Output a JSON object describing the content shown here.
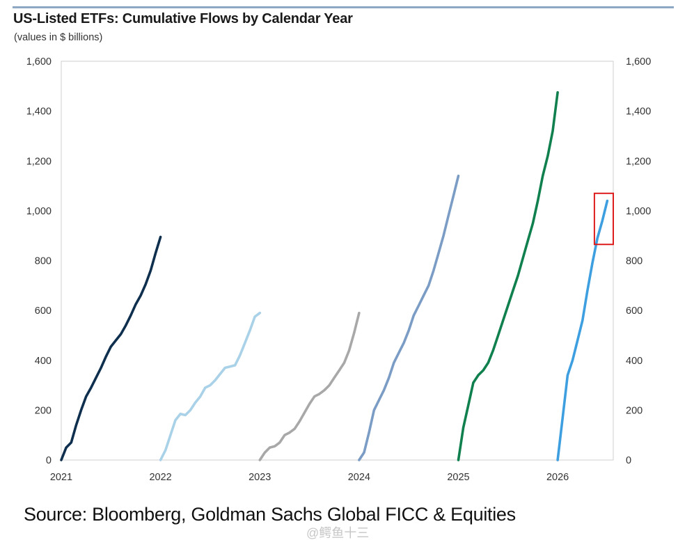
{
  "header": {
    "title": "US-Listed ETFs: Cumulative Flows by Calendar Year",
    "subtitle": "(values in $ billions)"
  },
  "footer": {
    "source": "Source: Bloomberg, Goldman Sachs Global FICC & Equities",
    "watermark": "@鳄鱼十三"
  },
  "chart_data": {
    "type": "line",
    "title": "US-Listed ETFs: Cumulative Flows by Calendar Year",
    "subtitle": "(values in $ billions)",
    "xlabel": "",
    "ylabel": "",
    "x_ticks": [
      "2021",
      "2022",
      "2023",
      "2024",
      "2025",
      "2026"
    ],
    "y_ticks": [
      "0",
      "200",
      "400",
      "600",
      "800",
      "1,000",
      "1,200",
      "1,400",
      "1,600"
    ],
    "y_ticks_right": [
      "0",
      "200",
      "400",
      "600",
      "800",
      "1,000",
      "1,200",
      "1,400",
      "1,600"
    ],
    "xlim": [
      2021,
      2026.56
    ],
    "ylim": [
      0,
      1600
    ],
    "grid": false,
    "legend": "none",
    "highlight_box": {
      "color": "#dd1c1c",
      "x_range": [
        2026.37,
        2026.56
      ],
      "y_range": [
        865,
        1070
      ]
    },
    "series": [
      {
        "color": "#0e2f4e",
        "x": [
          2021.0,
          2021.05,
          2021.1,
          2021.15,
          2021.2,
          2021.25,
          2021.3,
          2021.35,
          2021.4,
          2021.45,
          2021.5,
          2021.55,
          2021.6,
          2021.65,
          2021.7,
          2021.75,
          2021.8,
          2021.85,
          2021.9,
          2021.95,
          2022.0
        ],
        "y": [
          0,
          50,
          70,
          140,
          200,
          255,
          290,
          330,
          370,
          415,
          455,
          480,
          505,
          540,
          580,
          625,
          660,
          705,
          760,
          830,
          895
        ]
      },
      {
        "color": "#a9d1e8",
        "x": [
          2022.0,
          2022.05,
          2022.1,
          2022.15,
          2022.2,
          2022.25,
          2022.3,
          2022.35,
          2022.4,
          2022.45,
          2022.5,
          2022.55,
          2022.6,
          2022.65,
          2022.7,
          2022.75,
          2022.8,
          2022.85,
          2022.9,
          2022.95,
          2023.0
        ],
        "y": [
          0,
          40,
          100,
          160,
          185,
          180,
          200,
          230,
          255,
          290,
          300,
          320,
          345,
          370,
          375,
          380,
          420,
          470,
          520,
          575,
          590
        ]
      },
      {
        "color": "#a8a8a8",
        "x": [
          2023.0,
          2023.05,
          2023.1,
          2023.15,
          2023.2,
          2023.25,
          2023.3,
          2023.35,
          2023.4,
          2023.45,
          2023.5,
          2023.55,
          2023.6,
          2023.65,
          2023.7,
          2023.75,
          2023.8,
          2023.85,
          2023.9,
          2023.95,
          2024.0
        ],
        "y": [
          0,
          30,
          50,
          55,
          70,
          100,
          110,
          125,
          155,
          190,
          225,
          255,
          265,
          280,
          300,
          330,
          360,
          390,
          440,
          510,
          590
        ]
      },
      {
        "color": "#7b9cc4",
        "x": [
          2024.0,
          2024.05,
          2024.1,
          2024.15,
          2024.2,
          2024.25,
          2024.3,
          2024.35,
          2024.4,
          2024.45,
          2024.5,
          2024.55,
          2024.6,
          2024.65,
          2024.7,
          2024.75,
          2024.8,
          2024.85,
          2024.9,
          2024.95,
          2025.0
        ],
        "y": [
          0,
          30,
          110,
          200,
          240,
          280,
          330,
          390,
          430,
          470,
          520,
          580,
          620,
          660,
          700,
          760,
          830,
          900,
          980,
          1060,
          1140
        ]
      },
      {
        "color": "#10804e",
        "x": [
          2025.0,
          2025.05,
          2025.1,
          2025.15,
          2025.2,
          2025.25,
          2025.3,
          2025.35,
          2025.4,
          2025.45,
          2025.5,
          2025.55,
          2025.6,
          2025.65,
          2025.7,
          2025.75,
          2025.8,
          2025.85,
          2025.9,
          2025.95,
          2026.0
        ],
        "y": [
          0,
          130,
          220,
          310,
          340,
          360,
          390,
          440,
          500,
          560,
          620,
          680,
          740,
          810,
          880,
          950,
          1040,
          1140,
          1220,
          1320,
          1475
        ]
      },
      {
        "color": "#3e9fe0",
        "x": [
          2026.0,
          2026.05,
          2026.1,
          2026.15,
          2026.2,
          2026.25,
          2026.3,
          2026.35,
          2026.4,
          2026.45,
          2026.5
        ],
        "y": [
          0,
          170,
          340,
          400,
          480,
          560,
          680,
          790,
          890,
          960,
          1040
        ]
      }
    ]
  }
}
